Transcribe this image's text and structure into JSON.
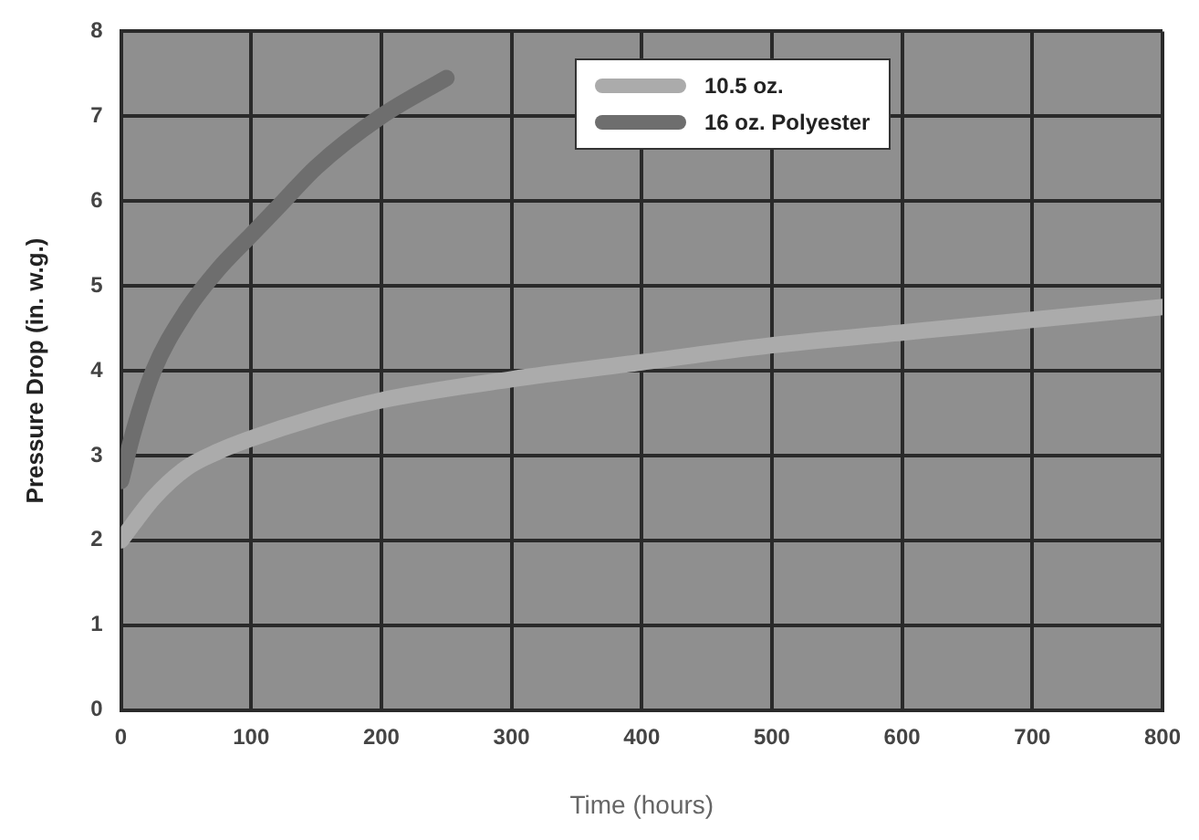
{
  "chart_data": {
    "type": "line",
    "xlabel": "Time (hours)",
    "ylabel": "Pressure Drop (in. w.g.)",
    "xlim": [
      0,
      800
    ],
    "xticks": [
      0,
      100,
      200,
      300,
      400,
      500,
      600,
      700,
      800
    ],
    "ylim": [
      0,
      8
    ],
    "yticks": [
      0,
      1,
      2,
      3,
      4,
      5,
      6,
      7,
      8
    ],
    "grid": true,
    "legend": "top right",
    "marker": "none",
    "line_style": "solid",
    "series": [
      {
        "name": "10.5 oz.",
        "color": "#ababab",
        "x": [
          0,
          25,
          50,
          75,
          100,
          150,
          200,
          300,
          400,
          500,
          600,
          700,
          800
        ],
        "values": [
          2.0,
          2.5,
          2.85,
          3.05,
          3.2,
          3.45,
          3.65,
          3.9,
          4.1,
          4.3,
          4.45,
          4.6,
          4.75
        ]
      },
      {
        "name": "16 oz. Polyester",
        "color": "#6e6e6e",
        "x": [
          0,
          10,
          25,
          50,
          75,
          100,
          125,
          150,
          200,
          250
        ],
        "values": [
          2.7,
          3.3,
          4.0,
          4.7,
          5.2,
          5.6,
          6.0,
          6.4,
          7.0,
          7.45
        ]
      }
    ]
  }
}
